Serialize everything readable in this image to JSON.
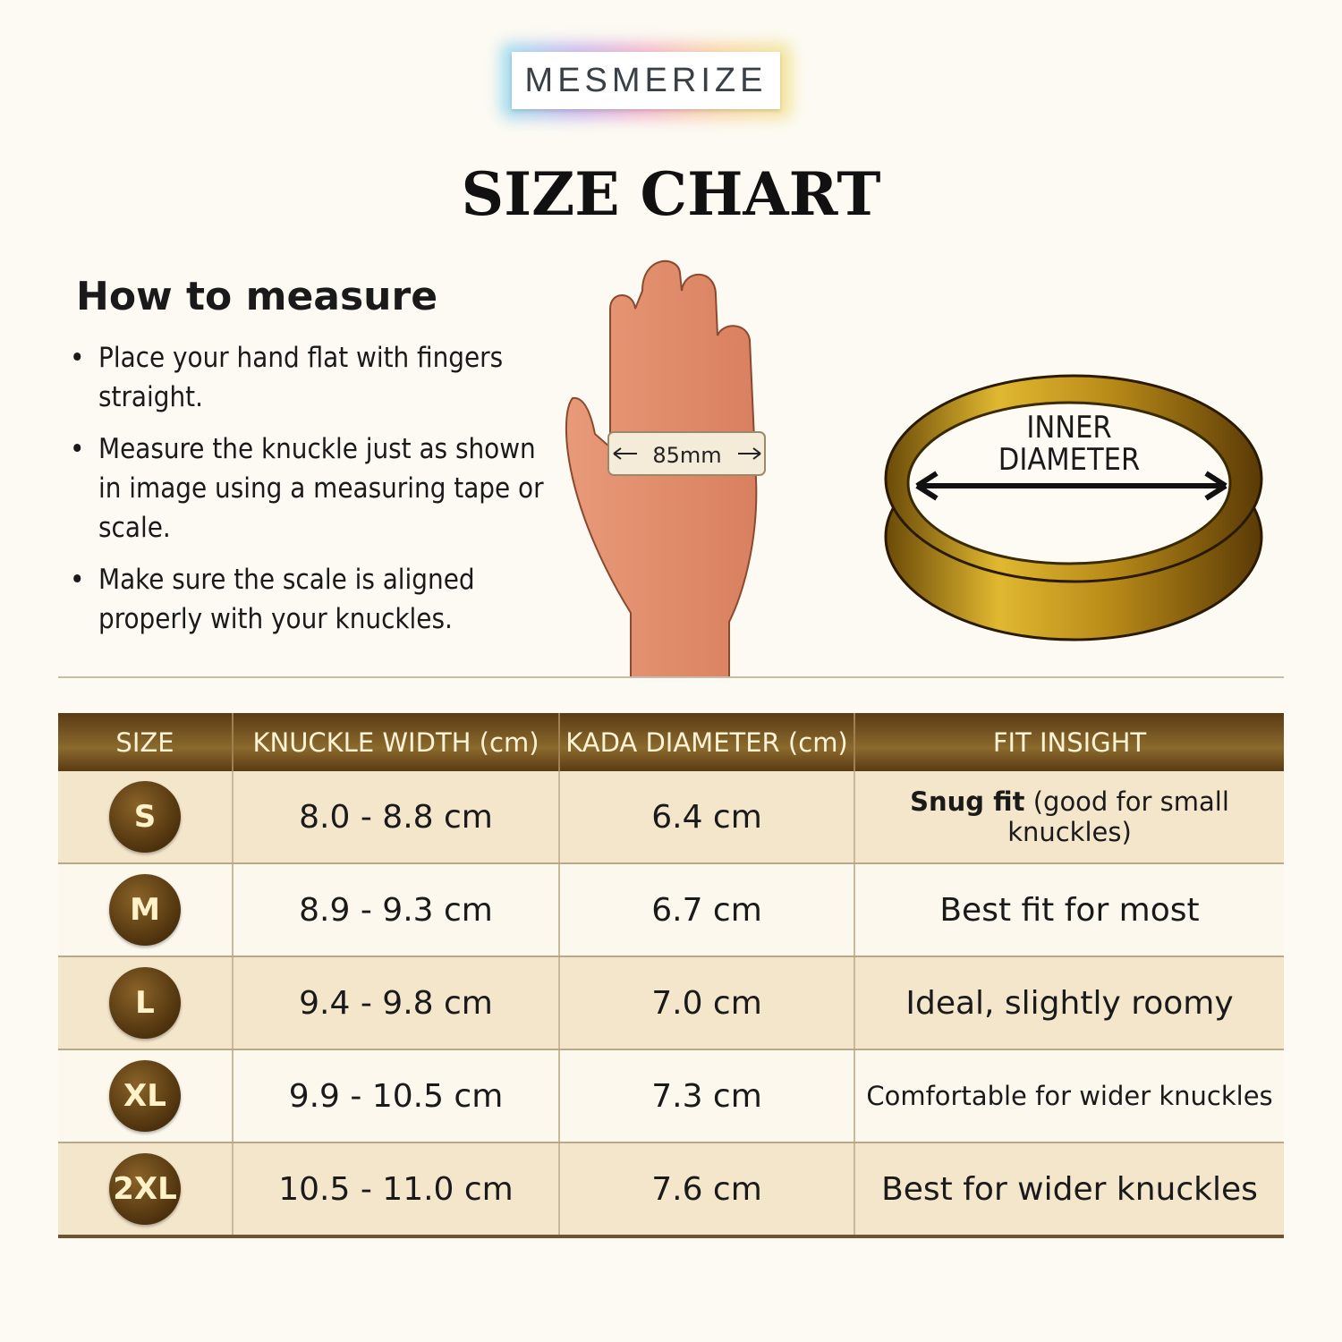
{
  "brand": {
    "logo_text": "MESMERIZE"
  },
  "title": "SIZE CHART",
  "how_to_measure": {
    "heading": "How to measure",
    "steps": [
      "Place your hand flat with fingers straight.",
      "Measure the knuckle just as shown in image using a measuring tape or scale.",
      "Make sure the scale is aligned properly with your knuckles."
    ]
  },
  "hand_illustration": {
    "measurement_label": "85mm",
    "icon": "hand-with-tape-icon"
  },
  "ring_illustration": {
    "label_line1": "INNER",
    "label_line2": "DIAMETER",
    "icon": "gold-kada-ring-icon"
  },
  "table": {
    "headers": [
      "SIZE",
      "KNUCKLE WIDTH (cm)",
      "KADA DIAMETER (cm)",
      "FIT INSIGHT"
    ],
    "rows": [
      {
        "size": "S",
        "knuckle": "8.0 - 8.8 cm",
        "diameter": "6.4 cm",
        "fit_bold": "Snug fit",
        "fit": " (good for small knuckles)"
      },
      {
        "size": "M",
        "knuckle": "8.9 - 9.3 cm",
        "diameter": "6.7 cm",
        "fit_bold": "",
        "fit": "Best fit for most"
      },
      {
        "size": "L",
        "knuckle": "9.4 - 9.8 cm",
        "diameter": "7.0 cm",
        "fit_bold": "",
        "fit": "Ideal, slightly roomy"
      },
      {
        "size": "XL",
        "knuckle": "9.9 - 10.5 cm",
        "diameter": "7.3 cm",
        "fit_bold": "",
        "fit": "Comfortable for wider knuckles"
      },
      {
        "size": "2XL",
        "knuckle": "10.5 - 11.0 cm",
        "diameter": "7.6 cm",
        "fit_bold": "",
        "fit": "Best for wider knuckles"
      }
    ]
  },
  "colors": {
    "header_brown": "#5a3a14",
    "row_beige": "#f4e6cb",
    "row_light": "#fcf8ee",
    "gold": "#c9a227"
  }
}
